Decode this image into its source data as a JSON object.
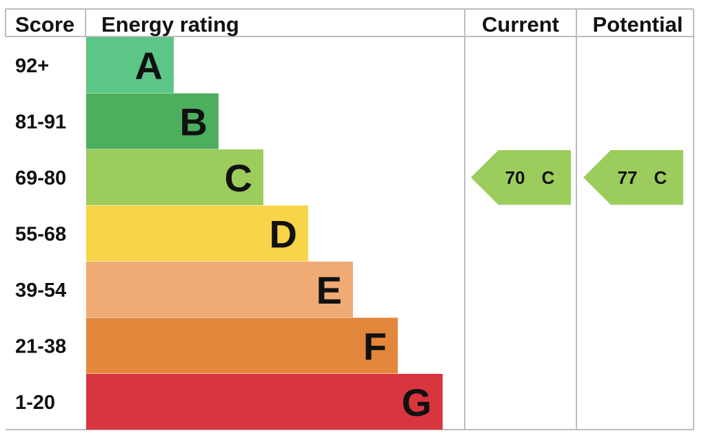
{
  "headers": {
    "score": "Score",
    "rating": "Energy rating",
    "current": "Current",
    "potential": "Potential"
  },
  "chart_data": {
    "type": "bar",
    "categories": [
      "A",
      "B",
      "C",
      "D",
      "E",
      "F",
      "G"
    ],
    "score_ranges": [
      "92+",
      "81-91",
      "69-80",
      "55-68",
      "39-54",
      "21-38",
      "1-20"
    ],
    "band_colors": [
      "#5cc686",
      "#4daf5e",
      "#9ccc5c",
      "#f7d448",
      "#f0ab75",
      "#e3873c",
      "#d9353f"
    ],
    "relative_width": [
      1,
      2,
      3,
      4,
      5,
      6,
      7
    ],
    "current": {
      "score": "70",
      "band": "C",
      "color": "#9ccc5c"
    },
    "potential": {
      "score": "77",
      "band": "C",
      "color": "#9ccc5c"
    }
  }
}
